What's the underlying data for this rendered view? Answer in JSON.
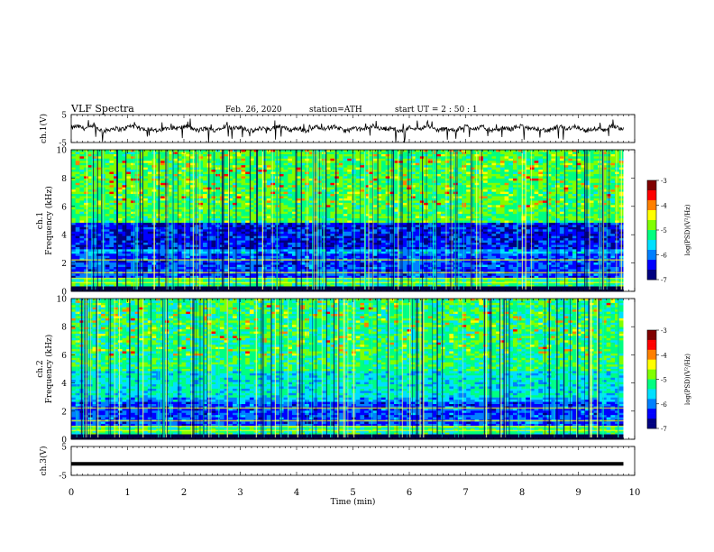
{
  "header": {
    "title": "VLF  Spectra",
    "date": "Feb. 26, 2020",
    "station": "station=ATH",
    "start": "start  UT  =   2  : 50 : 1"
  },
  "colormap": [
    "#000080",
    "#0000ff",
    "#0080ff",
    "#00e0ff",
    "#00ff80",
    "#80ff00",
    "#ffff00",
    "#ff8000",
    "#ff0000",
    "#800000",
    "#ffffff"
  ],
  "chart_data": [
    {
      "type": "line",
      "id": "ch1-waveform",
      "ylabel": "ch.1(V)",
      "ylim": [
        -5,
        5
      ],
      "yticks": [
        "5",
        "-5"
      ],
      "xlim": [
        0,
        10
      ]
    },
    {
      "type": "heatmap",
      "id": "ch1-spectrogram",
      "ylabel": "ch.1\nFrequency (kHz)",
      "ylim": [
        0,
        10
      ],
      "yticks": [
        "0",
        "2",
        "4",
        "6",
        "8",
        "10"
      ],
      "colorbar": {
        "label": "log(PSD)(V²/Hz)",
        "ticks": [
          "-3",
          "-4",
          "-5",
          "-6",
          "-7"
        ],
        "range": [
          -7,
          -3
        ]
      }
    },
    {
      "type": "heatmap",
      "id": "ch2-spectrogram",
      "ylabel": "ch.2\nFrequency (kHz)",
      "ylim": [
        0,
        10
      ],
      "yticks": [
        "0",
        "2",
        "4",
        "6",
        "8",
        "10"
      ],
      "colorbar": {
        "label": "log(PSD)(V²/Hz)",
        "ticks": [
          "-3",
          "-4",
          "-5",
          "-6",
          "-7"
        ],
        "range": [
          -7,
          -3
        ]
      }
    },
    {
      "type": "line",
      "id": "ch3-waveform",
      "ylabel": "ch.3(V)",
      "ylim": [
        -5,
        5
      ],
      "yticks": [
        "5",
        "-5"
      ],
      "level": -1,
      "xlim": [
        0,
        10
      ]
    }
  ],
  "xaxis": {
    "label": "Time  (min)",
    "ticks": [
      "0",
      "1",
      "2",
      "3",
      "4",
      "5",
      "6",
      "7",
      "8",
      "9",
      "10"
    ],
    "data_end": 9.8
  }
}
